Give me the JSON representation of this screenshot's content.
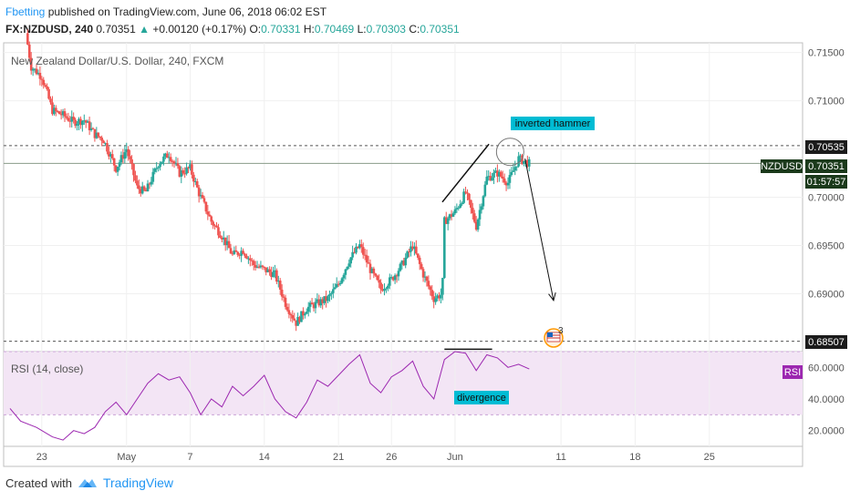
{
  "header": {
    "author": "Fbetting",
    "published": "published on TradingView.com, June 06, 2018 06:02 EST",
    "symbol": "FX:NZDUSD, 240",
    "last": "0.70351",
    "change": "+0.00120 (+0.17%)",
    "o_label": "O:",
    "o": "0.70331",
    "h_label": "H:",
    "h": "0.70469",
    "l_label": "L:",
    "l": "0.70303",
    "c_label": "C:",
    "c": "0.70351"
  },
  "chart_title": "New Zealand Dollar/U.S. Dollar, 240, FXCM",
  "rsi_title": "RSI (14, close)",
  "rsi_badge": "RSI",
  "badges": {
    "level_high": "0.70535",
    "symbol_tag": "NZDUSD",
    "current_price": "0.70351",
    "countdown": "01:57:57",
    "level_low": "0.68507"
  },
  "annotations": {
    "hammer": "inverted hammer",
    "divergence": "divergence",
    "events_count": "3"
  },
  "footer": {
    "created_with": "Created with",
    "brand": "TradingView"
  },
  "colors": {
    "up": "#26a69a",
    "down": "#ef5350",
    "rsi_line": "#9c27b0",
    "rsi_band": "#f3e5f5",
    "badge_dark": "#1b3a1b",
    "label_box": "#00bcd4",
    "author": "#2196f3"
  },
  "chart_data": [
    {
      "type": "candlestick",
      "title": "New Zealand Dollar/U.S. Dollar, 240, FXCM",
      "ylim": [
        0.684,
        0.716
      ],
      "yticks": [
        0.715,
        0.71,
        0.705,
        0.7,
        0.695,
        0.69
      ],
      "ytick_labels": [
        "0.71500",
        "0.71000",
        "0.70500",
        "0.70000",
        "0.69500",
        "0.69000"
      ],
      "xticks": [
        {
          "label": "23",
          "d": -8
        },
        {
          "label": "May",
          "d": 0
        },
        {
          "label": "7",
          "d": 6
        },
        {
          "label": "14",
          "d": 13
        },
        {
          "label": "21",
          "d": 20
        },
        {
          "label": "26",
          "d": 25
        },
        {
          "label": "Jun",
          "d": 31
        },
        {
          "label": "11",
          "d": 41
        },
        {
          "label": "18",
          "d": 48
        },
        {
          "label": "25",
          "d": 55
        }
      ],
      "xlim": [
        -11.6,
        63.8
      ],
      "horizontal_levels": [
        0.70535,
        0.68507
      ],
      "current_price": 0.70351,
      "anchors": [
        [
          -9.5,
          0.717
        ],
        [
          -9,
          0.7135
        ],
        [
          -8,
          0.7125
        ],
        [
          -7,
          0.709
        ],
        [
          -6,
          0.7085
        ],
        [
          -5,
          0.7078
        ],
        [
          -4,
          0.708
        ],
        [
          -3,
          0.7065
        ],
        [
          -2.2,
          0.706
        ],
        [
          -1,
          0.703
        ],
        [
          0,
          0.705
        ],
        [
          1,
          0.701
        ],
        [
          1.8,
          0.7005
        ],
        [
          3,
          0.7035
        ],
        [
          4,
          0.7045
        ],
        [
          5,
          0.7025
        ],
        [
          6,
          0.703
        ],
        [
          6.8,
          0.7005
        ],
        [
          8,
          0.6975
        ],
        [
          9,
          0.696
        ],
        [
          10,
          0.694
        ],
        [
          11,
          0.6945
        ],
        [
          12,
          0.693
        ],
        [
          13,
          0.6925
        ],
        [
          14,
          0.692
        ],
        [
          15,
          0.689
        ],
        [
          16,
          0.687
        ],
        [
          17,
          0.6885
        ],
        [
          18,
          0.689
        ],
        [
          19,
          0.6895
        ],
        [
          20,
          0.691
        ],
        [
          21,
          0.6935
        ],
        [
          22,
          0.695
        ],
        [
          23,
          0.6925
        ],
        [
          24,
          0.6905
        ],
        [
          25,
          0.6915
        ],
        [
          26,
          0.693
        ],
        [
          27,
          0.695
        ],
        [
          28,
          0.692
        ],
        [
          29,
          0.6895
        ],
        [
          29.8,
          0.69
        ],
        [
          30,
          0.6975
        ],
        [
          31,
          0.6985
        ],
        [
          32,
          0.7005
        ],
        [
          33,
          0.697
        ],
        [
          34,
          0.702
        ],
        [
          35,
          0.7025
        ],
        [
          36,
          0.7015
        ],
        [
          37,
          0.704
        ],
        [
          38,
          0.7035
        ]
      ],
      "annotations": [
        {
          "type": "trendline",
          "from": [
            29.8,
            0.6995
          ],
          "to": [
            34.2,
            0.7055
          ]
        },
        {
          "type": "circle",
          "at": [
            36.2,
            0.7047
          ]
        },
        {
          "type": "arrow",
          "from": [
            37.6,
            0.704
          ],
          "to": [
            40.3,
            0.6893
          ]
        }
      ]
    },
    {
      "type": "line",
      "title": "RSI (14, close)",
      "ylim": [
        10,
        70
      ],
      "yticks": [
        60,
        40,
        20
      ],
      "ytick_labels": [
        "60.0000",
        "40.0000",
        "20.0000"
      ],
      "band": [
        30,
        70
      ],
      "points": [
        [
          -11,
          34
        ],
        [
          -10,
          26
        ],
        [
          -8.5,
          22
        ],
        [
          -7,
          16
        ],
        [
          -6,
          14
        ],
        [
          -5,
          20
        ],
        [
          -4,
          18
        ],
        [
          -3,
          22
        ],
        [
          -2,
          32
        ],
        [
          -1,
          38
        ],
        [
          0,
          30
        ],
        [
          1,
          40
        ],
        [
          2,
          50
        ],
        [
          3,
          56
        ],
        [
          4,
          52
        ],
        [
          5,
          54
        ],
        [
          6,
          44
        ],
        [
          7,
          30
        ],
        [
          8,
          40
        ],
        [
          9,
          35
        ],
        [
          10,
          48
        ],
        [
          11,
          42
        ],
        [
          12,
          48
        ],
        [
          13,
          55
        ],
        [
          14,
          40
        ],
        [
          15,
          32
        ],
        [
          16,
          28
        ],
        [
          17,
          38
        ],
        [
          18,
          52
        ],
        [
          19,
          48
        ],
        [
          20,
          55
        ],
        [
          21,
          62
        ],
        [
          22,
          68
        ],
        [
          23,
          50
        ],
        [
          24,
          44
        ],
        [
          25,
          54
        ],
        [
          26,
          58
        ],
        [
          27,
          64
        ],
        [
          28,
          48
        ],
        [
          29,
          40
        ],
        [
          30,
          65
        ],
        [
          31,
          70
        ],
        [
          32,
          69
        ],
        [
          33,
          58
        ],
        [
          34,
          68
        ],
        [
          35,
          66
        ],
        [
          36,
          60
        ],
        [
          37,
          62
        ],
        [
          38,
          59
        ]
      ],
      "annotations": [
        {
          "type": "trendline",
          "from": [
            30,
            71.5
          ],
          "to": [
            34.5,
            71.5
          ]
        }
      ]
    }
  ]
}
